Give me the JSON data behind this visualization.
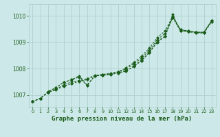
{
  "title": "Graphe pression niveau de la mer (hPa)",
  "background_color": "#cce8e8",
  "grid_color": "#aacccc",
  "line_color": "#1a5c1a",
  "xlim": [
    -0.5,
    23.5
  ],
  "ylim": [
    1006.55,
    1010.45
  ],
  "yticks": [
    1007,
    1008,
    1009,
    1010
  ],
  "xticks": [
    0,
    1,
    2,
    3,
    4,
    5,
    6,
    7,
    8,
    9,
    10,
    11,
    12,
    13,
    14,
    15,
    16,
    17,
    18,
    19,
    20,
    21,
    22,
    23
  ],
  "series": [
    [
      1006.75,
      1006.87,
      1007.1,
      1007.22,
      1007.38,
      1007.5,
      1007.55,
      1007.62,
      1007.75,
      1007.77,
      1007.8,
      1007.85,
      1007.92,
      1008.08,
      1008.3,
      1008.6,
      1009.0,
      1009.22,
      1009.95,
      1009.48,
      1009.42,
      1009.38,
      1009.38,
      1009.82
    ],
    [
      1006.75,
      1006.87,
      1007.1,
      1007.2,
      1007.33,
      1007.43,
      1007.52,
      1007.58,
      1007.73,
      1007.75,
      1007.78,
      1007.83,
      1007.9,
      1008.1,
      1008.33,
      1008.63,
      1009.03,
      1009.23,
      1010.05,
      1009.43,
      1009.4,
      1009.35,
      1009.35,
      1009.78
    ],
    [
      1006.75,
      1006.87,
      1007.13,
      1007.27,
      1007.48,
      1007.58,
      1007.68,
      1007.35,
      1007.73,
      1007.75,
      1007.8,
      1007.88,
      1007.98,
      1008.18,
      1008.4,
      1008.7,
      1009.1,
      1009.33,
      1009.93,
      1009.43,
      1009.43,
      1009.38,
      1009.38,
      1009.82
    ],
    [
      1006.75,
      1006.87,
      1007.13,
      1007.28,
      1007.48,
      1007.58,
      1007.73,
      1007.38,
      1007.73,
      1007.78,
      1007.83,
      1007.88,
      1008.03,
      1008.23,
      1008.48,
      1008.78,
      1009.18,
      1009.43,
      1009.98,
      1009.48,
      1009.43,
      1009.38,
      1009.38,
      1009.82
    ]
  ]
}
